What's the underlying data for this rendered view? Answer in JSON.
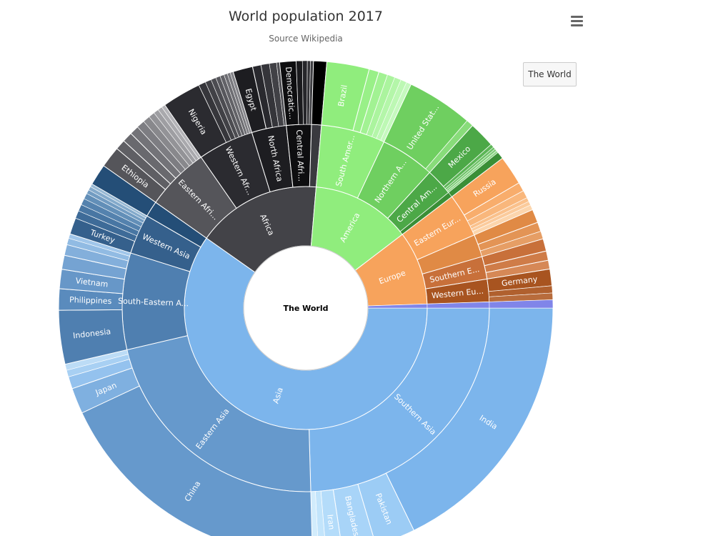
{
  "title": "World population 2017",
  "subtitle": "Source Wikipedia",
  "menu_icon": "hamburger-menu-icon",
  "drill_button_label": "The World",
  "center_label": "The World",
  "chart_data": {
    "type": "sunburst",
    "title": "World population 2017",
    "subtitle": "Source Wikipedia",
    "root": "The World",
    "continents": [
      {
        "name": "Asia",
        "value": 4500,
        "color": "#7cb5ec"
      },
      {
        "name": "Africa",
        "value": 1250,
        "color": "#434348"
      },
      {
        "name": "America",
        "value": 1000,
        "color": "#90ed7d"
      },
      {
        "name": "Europe",
        "value": 740,
        "color": "#f7a35c"
      },
      {
        "name": "",
        "value": 40,
        "color": "#8085e9"
      }
    ],
    "regions": [
      {
        "name": "Southern Asia",
        "parent": "Asia",
        "value": 1850,
        "color": "#7cb5ec"
      },
      {
        "name": "Eastern Asia",
        "parent": "Asia",
        "value": 1640,
        "color": "#6699cc"
      },
      {
        "name": "South-Eastern A...",
        "parent": "Asia",
        "value": 640,
        "color": "#4f7fb0"
      },
      {
        "name": "Western Asia",
        "parent": "Asia",
        "value": 265,
        "color": "#35608c"
      },
      {
        "name": "",
        "parent": "Asia",
        "value": 105,
        "color": "#244e77"
      },
      {
        "name": "Eastern Afri...",
        "parent": "Africa",
        "value": 420,
        "color": "#55555a"
      },
      {
        "name": "Western Afr...",
        "parent": "Africa",
        "value": 370,
        "color": "#2b2b30"
      },
      {
        "name": "North Africa",
        "parent": "Africa",
        "value": 230,
        "color": "#1d1d21"
      },
      {
        "name": "Central Afri...",
        "parent": "Africa",
        "value": 165,
        "color": "#0e0e10"
      },
      {
        "name": "",
        "parent": "Africa",
        "value": 65,
        "color": "#3a3a3f"
      },
      {
        "name": "South Amer...",
        "parent": "America",
        "value": 425,
        "color": "#90ed7d"
      },
      {
        "name": "Northern A...",
        "parent": "America",
        "value": 360,
        "color": "#6fcf60"
      },
      {
        "name": "Central Am...",
        "parent": "America",
        "value": 180,
        "color": "#4ca847"
      },
      {
        "name": "",
        "parent": "America",
        "value": 35,
        "color": "#3a8f36"
      },
      {
        "name": "Eastern Eur...",
        "parent": "Europe",
        "value": 290,
        "color": "#f7a35c"
      },
      {
        "name": "",
        "parent": "Europe",
        "value": 150,
        "color": "#e08a45"
      },
      {
        "name": "Southern E...",
        "parent": "Europe",
        "value": 150,
        "color": "#c8703a"
      },
      {
        "name": "Western Eu...",
        "parent": "Europe",
        "value": 150,
        "color": "#a85420"
      },
      {
        "name": "",
        "parent": "",
        "value": 40,
        "color": "#8085e9"
      }
    ],
    "countries": [
      {
        "name": "India",
        "parent": "Southern Asia",
        "value": 1340,
        "color": "#7cb5ec"
      },
      {
        "name": "Pakistan",
        "parent": "Southern Asia",
        "value": 198,
        "color": "#9cccf5"
      },
      {
        "name": "Bangladesh",
        "parent": "Southern Asia",
        "value": 165,
        "color": "#a8d4f8"
      },
      {
        "name": "Iran",
        "parent": "Southern Asia",
        "value": 81,
        "color": "#b4dcfa"
      },
      {
        "name": "",
        "parent": "Southern Asia",
        "value": 36,
        "color": "#c2e4fb"
      },
      {
        "name": "",
        "parent": "Southern Asia",
        "value": 30,
        "color": "#d2ecfc"
      },
      {
        "name": "China",
        "parent": "Eastern Asia",
        "value": 1390,
        "color": "#6699cc"
      },
      {
        "name": "Japan",
        "parent": "Eastern Asia",
        "value": 127,
        "color": "#7fb0e0"
      },
      {
        "name": "",
        "parent": "Eastern Asia",
        "value": 60,
        "color": "#94c2ee"
      },
      {
        "name": "",
        "parent": "Eastern Asia",
        "value": 33,
        "color": "#a8d0f3"
      },
      {
        "name": "",
        "parent": "Eastern Asia",
        "value": 30,
        "color": "#bcdcf6"
      },
      {
        "name": "Indonesia",
        "parent": "South-Eastern A...",
        "value": 264,
        "color": "#4f7fb0"
      },
      {
        "name": "Philippines",
        "parent": "South-Eastern A...",
        "value": 105,
        "color": "#5a8bbd"
      },
      {
        "name": "Vietnam",
        "parent": "South-Eastern A...",
        "value": 95,
        "color": "#6797c8"
      },
      {
        "name": "",
        "parent": "South-Eastern A...",
        "value": 69,
        "color": "#75a3d2"
      },
      {
        "name": "",
        "parent": "South-Eastern A...",
        "value": 53,
        "color": "#83afdb"
      },
      {
        "name": "",
        "parent": "South-Eastern A...",
        "value": 32,
        "color": "#91bbe3"
      },
      {
        "name": "",
        "parent": "South-Eastern A...",
        "value": 22,
        "color": "#a0c6ea"
      },
      {
        "name": "Turkey",
        "parent": "Western Asia",
        "value": 81,
        "color": "#35608c"
      },
      {
        "name": "",
        "parent": "Western Asia",
        "value": 38,
        "color": "#3e6b98"
      },
      {
        "name": "",
        "parent": "Western Asia",
        "value": 33,
        "color": "#4876a3"
      },
      {
        "name": "",
        "parent": "Western Asia",
        "value": 32,
        "color": "#5482ae"
      },
      {
        "name": "",
        "parent": "Western Asia",
        "value": 28,
        "color": "#628fb8"
      },
      {
        "name": "",
        "parent": "Western Asia",
        "value": 20,
        "color": "#729cc2"
      },
      {
        "name": "",
        "parent": "Western Asia",
        "value": 18,
        "color": "#84aacb"
      },
      {
        "name": "",
        "parent": "Western Asia",
        "value": 15,
        "color": "#98b9d4"
      },
      {
        "name": "",
        "parent": "",
        "value": 105,
        "color": "#244e77"
      },
      {
        "name": "Ethiopia",
        "parent": "Eastern Afri...",
        "value": 105,
        "color": "#55555a"
      },
      {
        "name": "",
        "parent": "Eastern Afri...",
        "value": 50,
        "color": "#5f5f64"
      },
      {
        "name": "",
        "parent": "Eastern Afri...",
        "value": 50,
        "color": "#69696e"
      },
      {
        "name": "",
        "parent": "Eastern Afri...",
        "value": 45,
        "color": "#737378"
      },
      {
        "name": "",
        "parent": "Eastern Afri...",
        "value": 40,
        "color": "#7d7d82"
      },
      {
        "name": "",
        "parent": "Eastern Afri...",
        "value": 35,
        "color": "#88888c"
      },
      {
        "name": "",
        "parent": "Eastern Afri...",
        "value": 30,
        "color": "#939397"
      },
      {
        "name": "",
        "parent": "Eastern Afri...",
        "value": 25,
        "color": "#9e9ea2"
      },
      {
        "name": "",
        "parent": "Eastern Afri...",
        "value": 22,
        "color": "#a9a9ad"
      },
      {
        "name": "",
        "parent": "Eastern Afri...",
        "value": 18,
        "color": "#b4b4b8"
      },
      {
        "name": "Nigeria",
        "parent": "Western Afr...",
        "value": 191,
        "color": "#2b2b30"
      },
      {
        "name": "",
        "parent": "Western Afr...",
        "value": 35,
        "color": "#36363b"
      },
      {
        "name": "",
        "parent": "Western Afr...",
        "value": 30,
        "color": "#414146"
      },
      {
        "name": "",
        "parent": "Western Afr...",
        "value": 25,
        "color": "#4c4c51"
      },
      {
        "name": "",
        "parent": "Western Afr...",
        "value": 22,
        "color": "#57575c"
      },
      {
        "name": "",
        "parent": "Western Afr...",
        "value": 20,
        "color": "#626267"
      },
      {
        "name": "",
        "parent": "Western Afr...",
        "value": 17,
        "color": "#6d6d72"
      },
      {
        "name": "",
        "parent": "Western Afr...",
        "value": 15,
        "color": "#78787d"
      },
      {
        "name": "",
        "parent": "Western Afr...",
        "value": 15,
        "color": "#838388"
      },
      {
        "name": "Egypt",
        "parent": "North Africa",
        "value": 97,
        "color": "#1d1d21"
      },
      {
        "name": "",
        "parent": "North Africa",
        "value": 42,
        "color": "#29292e"
      },
      {
        "name": "",
        "parent": "North Africa",
        "value": 41,
        "color": "#35353a"
      },
      {
        "name": "",
        "parent": "North Africa",
        "value": 35,
        "color": "#414146"
      },
      {
        "name": "",
        "parent": "North Africa",
        "value": 15,
        "color": "#4d4d52"
      },
      {
        "name": "Democratic...",
        "parent": "Central Afri...",
        "value": 81,
        "color": "#0e0e10"
      },
      {
        "name": "",
        "parent": "Central Afri...",
        "value": 30,
        "color": "#1a1a1d"
      },
      {
        "name": "",
        "parent": "Central Afri...",
        "value": 24,
        "color": "#26262a"
      },
      {
        "name": "",
        "parent": "Central Afri...",
        "value": 15,
        "color": "#323236"
      },
      {
        "name": "",
        "parent": "Central Afri...",
        "value": 15,
        "color": "#3e3e42"
      },
      {
        "name": "",
        "parent": "",
        "value": 65,
        "color": "#000000"
      },
      {
        "name": "Brazil",
        "parent": "South Amer...",
        "value": 209,
        "color": "#90ed7d"
      },
      {
        "name": "",
        "parent": "South Amer...",
        "value": 49,
        "color": "#99f088"
      },
      {
        "name": "",
        "parent": "South Amer...",
        "value": 44,
        "color": "#a2f293"
      },
      {
        "name": "",
        "parent": "South Amer...",
        "value": 37,
        "color": "#abf49e"
      },
      {
        "name": "",
        "parent": "South Amer...",
        "value": 32,
        "color": "#b4f6a9"
      },
      {
        "name": "",
        "parent": "South Amer...",
        "value": 30,
        "color": "#bdf8b4"
      },
      {
        "name": "",
        "parent": "South Amer...",
        "value": 24,
        "color": "#c6f9bf"
      },
      {
        "name": "United Stat...",
        "parent": "Northern A...",
        "value": 325,
        "color": "#6fcf60"
      },
      {
        "name": "",
        "parent": "Northern A...",
        "value": 35,
        "color": "#88dc7a"
      },
      {
        "name": "Mexico",
        "parent": "Central Am...",
        "value": 129,
        "color": "#4ca847"
      },
      {
        "name": "",
        "parent": "Central Am...",
        "value": 17,
        "color": "#5cb656"
      },
      {
        "name": "",
        "parent": "Central Am...",
        "value": 12,
        "color": "#6dc266"
      },
      {
        "name": "",
        "parent": "Central Am...",
        "value": 11,
        "color": "#7ecd77"
      },
      {
        "name": "",
        "parent": "Central Am...",
        "value": 11,
        "color": "#8fd788"
      },
      {
        "name": "",
        "parent": "",
        "value": 35,
        "color": "#3a8f36"
      },
      {
        "name": "Russia",
        "parent": "Eastern Eur...",
        "value": 144,
        "color": "#f7a35c"
      },
      {
        "name": "",
        "parent": "Eastern Eur...",
        "value": 44,
        "color": "#f8ad6c"
      },
      {
        "name": "",
        "parent": "Eastern Eur...",
        "value": 38,
        "color": "#f9b77c"
      },
      {
        "name": "",
        "parent": "Eastern Eur...",
        "value": 20,
        "color": "#fac18c"
      },
      {
        "name": "",
        "parent": "Eastern Eur...",
        "value": 19,
        "color": "#fbcb9c"
      },
      {
        "name": "",
        "parent": "Eastern Eur...",
        "value": 25,
        "color": "#fcd5ac"
      },
      {
        "name": "",
        "parent": "",
        "value": 66,
        "color": "#e08a45"
      },
      {
        "name": "",
        "parent": "",
        "value": 46,
        "color": "#e39455"
      },
      {
        "name": "",
        "parent": "",
        "value": 38,
        "color": "#e69e65"
      },
      {
        "name": "",
        "parent": "Southern E...",
        "value": 61,
        "color": "#c8703a"
      },
      {
        "name": "",
        "parent": "Southern E...",
        "value": 46,
        "color": "#cf7c48"
      },
      {
        "name": "",
        "parent": "Southern E...",
        "value": 43,
        "color": "#d68856"
      },
      {
        "name": "Germany",
        "parent": "Western Eu...",
        "value": 82,
        "color": "#a85420"
      },
      {
        "name": "",
        "parent": "Western Eu...",
        "value": 35,
        "color": "#b0602e"
      },
      {
        "name": "",
        "parent": "Western Eu...",
        "value": 33,
        "color": "#b86c3c"
      },
      {
        "name": "",
        "parent": "",
        "value": 40,
        "color": "#8085e9"
      }
    ]
  }
}
